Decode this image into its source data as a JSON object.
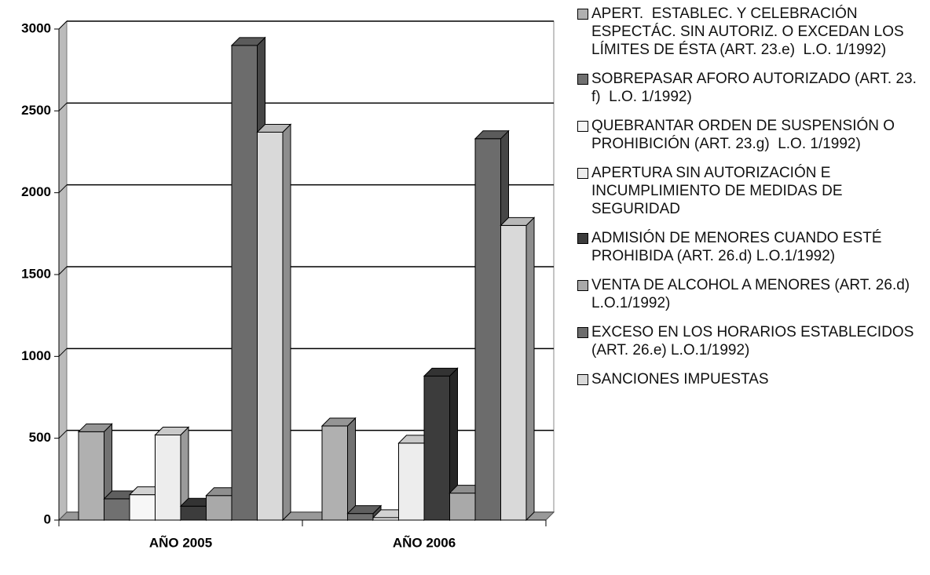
{
  "chart_data": {
    "type": "bar3d",
    "categories": [
      "AÑO 2005",
      "AÑO 2006"
    ],
    "series": [
      {
        "name": "APERT.  ESTABLEC. Y CELEBRACIÓN ESPECTÁC. SIN AUTORIZ. O EXCEDAN LOS LÍMITES DE ÉSTA (ART. 23.e)  L.O. 1/1992)",
        "color": "#b0b0b0",
        "values": [
          540,
          575
        ]
      },
      {
        "name": "SOBREPASAR AFORO AUTORIZADO (ART. 23. f)  L.O. 1/1992)",
        "color": "#707070",
        "values": [
          130,
          40
        ]
      },
      {
        "name": "QUEBRANTAR ORDEN DE SUSPENSIÓN O PROHIBICIÓN (ART. 23.g)  L.O. 1/1992)",
        "color": "#f7f7f7",
        "values": [
          155,
          15
        ]
      },
      {
        "name": "APERTURA SIN AUTORIZACIÓN E INCUMPLIMIENTO DE MEDIDAS DE SEGURIDAD",
        "color": "#ededed",
        "values": [
          520,
          470
        ]
      },
      {
        "name": "ADMISIÓN DE MENORES CUANDO ESTÉ PROHIBIDA (ART. 26.d) L.O.1/1992)",
        "color": "#3c3c3c",
        "values": [
          85,
          880
        ]
      },
      {
        "name": "VENTA DE ALCOHOL A MENORES (ART. 26.d) L.O.1/1992)",
        "color": "#a9a9a9",
        "values": [
          150,
          165
        ]
      },
      {
        "name": "EXCESO EN LOS HORARIOS ESTABLECIDOS (ART. 26.e) L.O.1/1992)",
        "color": "#6c6c6c",
        "values": [
          2900,
          2330
        ]
      },
      {
        "name": "SANCIONES IMPUESTAS",
        "color": "#d9d9d9",
        "values": [
          2370,
          1800
        ]
      }
    ],
    "ylim": [
      0,
      3000
    ],
    "yticks": [
      0,
      500,
      1000,
      1500,
      2000,
      2500,
      3000
    ],
    "grid": true
  }
}
